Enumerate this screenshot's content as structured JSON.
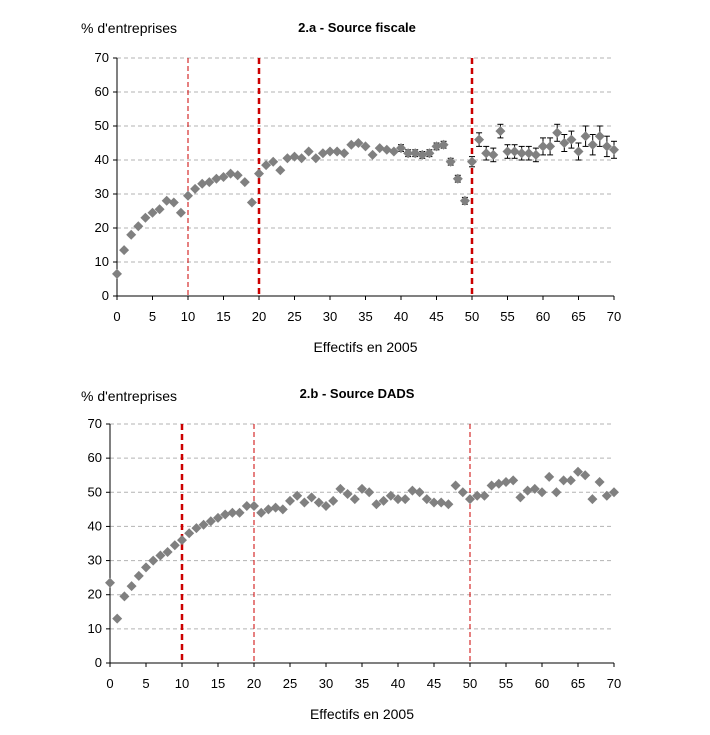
{
  "chart_data": [
    {
      "type": "scatter",
      "title": "2.a - Source fiscale",
      "ylabel": "% d'entreprises",
      "xlabel": "Effectifs en 2005",
      "xlim": [
        0,
        70
      ],
      "ylim": [
        0,
        70
      ],
      "xticks": [
        0,
        5,
        10,
        15,
        20,
        25,
        30,
        35,
        40,
        45,
        50,
        55,
        60,
        65,
        70
      ],
      "yticks": [
        0,
        10,
        20,
        30,
        40,
        50,
        60,
        70
      ],
      "grid": "horizontal dashed",
      "marker": "diamond",
      "marker_color": "#808080",
      "ref_lines": [
        {
          "x": 10,
          "style": "thin",
          "color": "#cc0000"
        },
        {
          "x": 20,
          "style": "thick",
          "color": "#cc0000"
        },
        {
          "x": 50,
          "style": "thick",
          "color": "#cc0000"
        }
      ],
      "x": [
        0,
        1,
        2,
        3,
        4,
        5,
        6,
        7,
        8,
        9,
        10,
        11,
        12,
        13,
        14,
        15,
        16,
        17,
        18,
        19,
        20,
        21,
        22,
        23,
        24,
        25,
        26,
        27,
        28,
        29,
        30,
        31,
        32,
        33,
        34,
        35,
        36,
        37,
        38,
        39,
        40,
        41,
        42,
        43,
        44,
        45,
        46,
        47,
        48,
        49,
        50,
        51,
        52,
        53,
        54,
        55,
        56,
        57,
        58,
        59,
        60,
        61,
        62,
        63,
        64,
        65,
        66,
        67,
        68,
        69,
        70
      ],
      "y": [
        6.5,
        13.5,
        18,
        20.5,
        23,
        24.5,
        25.5,
        28,
        27.5,
        24.5,
        29.5,
        31.5,
        33,
        33.5,
        34.5,
        35,
        36,
        35.5,
        33.5,
        27.5,
        36,
        38.5,
        39.5,
        37,
        40.5,
        41,
        40.5,
        42.5,
        40.5,
        42,
        42.5,
        42.5,
        42,
        44.5,
        45,
        44,
        41.5,
        43.5,
        43,
        42.5,
        43.5,
        42,
        42,
        41.5,
        42,
        44,
        44.5,
        39.5,
        34.5,
        28,
        39.5,
        46,
        42,
        41.5,
        48.5,
        42.5,
        42.5,
        42,
        42,
        41.5,
        44,
        44,
        48,
        45,
        46,
        42.5,
        47,
        44.5,
        47,
        44,
        43
      ],
      "err": [
        0,
        0,
        0,
        0,
        0,
        0,
        0,
        0,
        0,
        0,
        0,
        0,
        0,
        0,
        0,
        0,
        0,
        0,
        0,
        0,
        0,
        0,
        0,
        0,
        0,
        0,
        0,
        0,
        0,
        0,
        0,
        0,
        0,
        0,
        0,
        0,
        0,
        0,
        0,
        0,
        1,
        1,
        1,
        1,
        1,
        1,
        1,
        1,
        1,
        1,
        1.5,
        2,
        2,
        2,
        2,
        2,
        2,
        2,
        2,
        2,
        2.5,
        2.5,
        2.5,
        2.5,
        2.5,
        2.5,
        3,
        3,
        3,
        3,
        2.5
      ]
    },
    {
      "type": "scatter",
      "title": "2.b - Source DADS",
      "ylabel": "% d'entreprises",
      "xlabel": "Effectifs en 2005",
      "xlim": [
        0,
        70
      ],
      "ylim": [
        0,
        70
      ],
      "xticks": [
        0,
        5,
        10,
        15,
        20,
        25,
        30,
        35,
        40,
        45,
        50,
        55,
        60,
        65,
        70
      ],
      "yticks": [
        0,
        10,
        20,
        30,
        40,
        50,
        60,
        70
      ],
      "grid": "horizontal dashed",
      "marker": "diamond",
      "marker_color": "#808080",
      "ref_lines": [
        {
          "x": 10,
          "style": "thick",
          "color": "#cc0000"
        },
        {
          "x": 20,
          "style": "thin",
          "color": "#cc0000"
        },
        {
          "x": 50,
          "style": "thin",
          "color": "#cc0000"
        }
      ],
      "x": [
        0,
        1,
        2,
        3,
        4,
        5,
        6,
        7,
        8,
        9,
        10,
        11,
        12,
        13,
        14,
        15,
        16,
        17,
        18,
        19,
        20,
        21,
        22,
        23,
        24,
        25,
        26,
        27,
        28,
        29,
        30,
        31,
        32,
        33,
        34,
        35,
        36,
        37,
        38,
        39,
        40,
        41,
        42,
        43,
        44,
        45,
        46,
        47,
        48,
        49,
        50,
        51,
        52,
        53,
        54,
        55,
        56,
        57,
        58,
        59,
        60,
        61,
        62,
        63,
        64,
        65,
        66,
        67,
        68,
        69,
        70
      ],
      "y": [
        23.5,
        13,
        19.5,
        22.5,
        25.5,
        28,
        30,
        31.5,
        32.5,
        34.5,
        36,
        38,
        39.5,
        40.5,
        41.5,
        42.5,
        43.5,
        44,
        44,
        46,
        46,
        44,
        45,
        45.5,
        45,
        47.5,
        49,
        47,
        48.5,
        47,
        46,
        47.5,
        51,
        49.5,
        48,
        51,
        50,
        46.5,
        47.5,
        49,
        48,
        48,
        50.5,
        50,
        48,
        47,
        47,
        46.5,
        52,
        50,
        48,
        49,
        49,
        52,
        52.5,
        53,
        53.5,
        48.5,
        50.5,
        51,
        50,
        54.5,
        50,
        53.5,
        53.5,
        56,
        55,
        48,
        53,
        49,
        50
      ]
    }
  ]
}
